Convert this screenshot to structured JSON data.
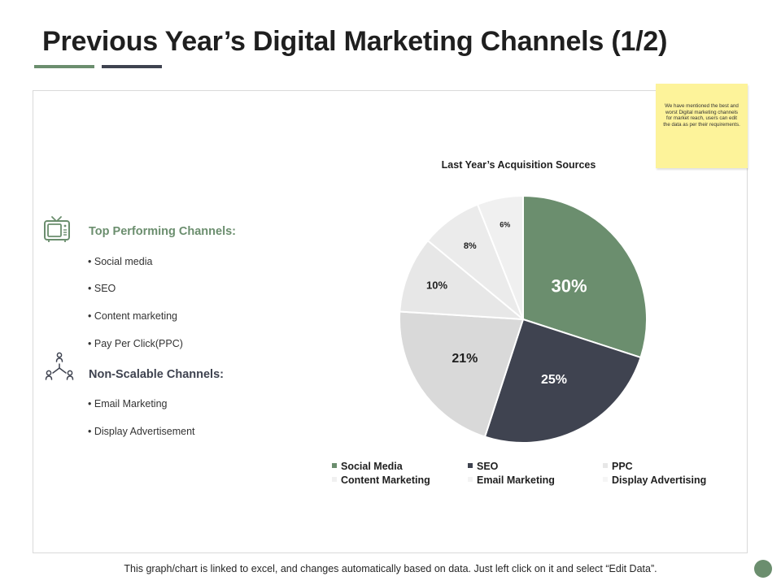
{
  "slide": {
    "title": "Previous Year’s Digital Marketing Channels (1/2)",
    "note": "We have mentioned the best and worst Digital marketing channels for market reach, users can edit the data as per their requirements.",
    "footer": "This graph/chart is linked to excel, and changes automatically based on data. Just left click on it and select “Edit Data”."
  },
  "left_panel": {
    "top_heading": "Top Performing Channels:",
    "top_items": [
      "Social media",
      "SEO",
      "Content marketing",
      "Pay Per Click(PPC)"
    ],
    "non_heading": "Non-Scalable Channels:",
    "non_items": [
      "Email Marketing",
      "Display Advertisement"
    ]
  },
  "colors": {
    "accent_green": "#6b8e6e",
    "accent_navy": "#3f4350",
    "note_yellow": "#fdf39a"
  },
  "chart_data": {
    "type": "pie",
    "title": "Last Year’s Acquisition Sources",
    "categories": [
      "Social Media",
      "SEO",
      "Content Marketing",
      "PPC",
      "Email Marketing",
      "Display Advertising"
    ],
    "values": [
      30,
      25,
      21,
      10,
      8,
      6
    ],
    "labels": [
      "30%",
      "25%",
      "21%",
      "10%",
      "8%",
      "6%"
    ],
    "colors": [
      "#6b8e6e",
      "#3f4350",
      "#d9d9d9",
      "#e7e7e7",
      "#ebebeb",
      "#f0f0f0"
    ],
    "label_colors": [
      "#ffffff",
      "#ffffff",
      "#1f1f1f",
      "#1f1f1f",
      "#1f1f1f",
      "#1f1f1f"
    ],
    "start_angle_deg": 0,
    "direction": "clockwise",
    "legend_position": "bottom",
    "legend_order": [
      "Social Media",
      "SEO",
      "PPC",
      "Content Marketing",
      "Email Marketing",
      "Display Advertising"
    ]
  }
}
